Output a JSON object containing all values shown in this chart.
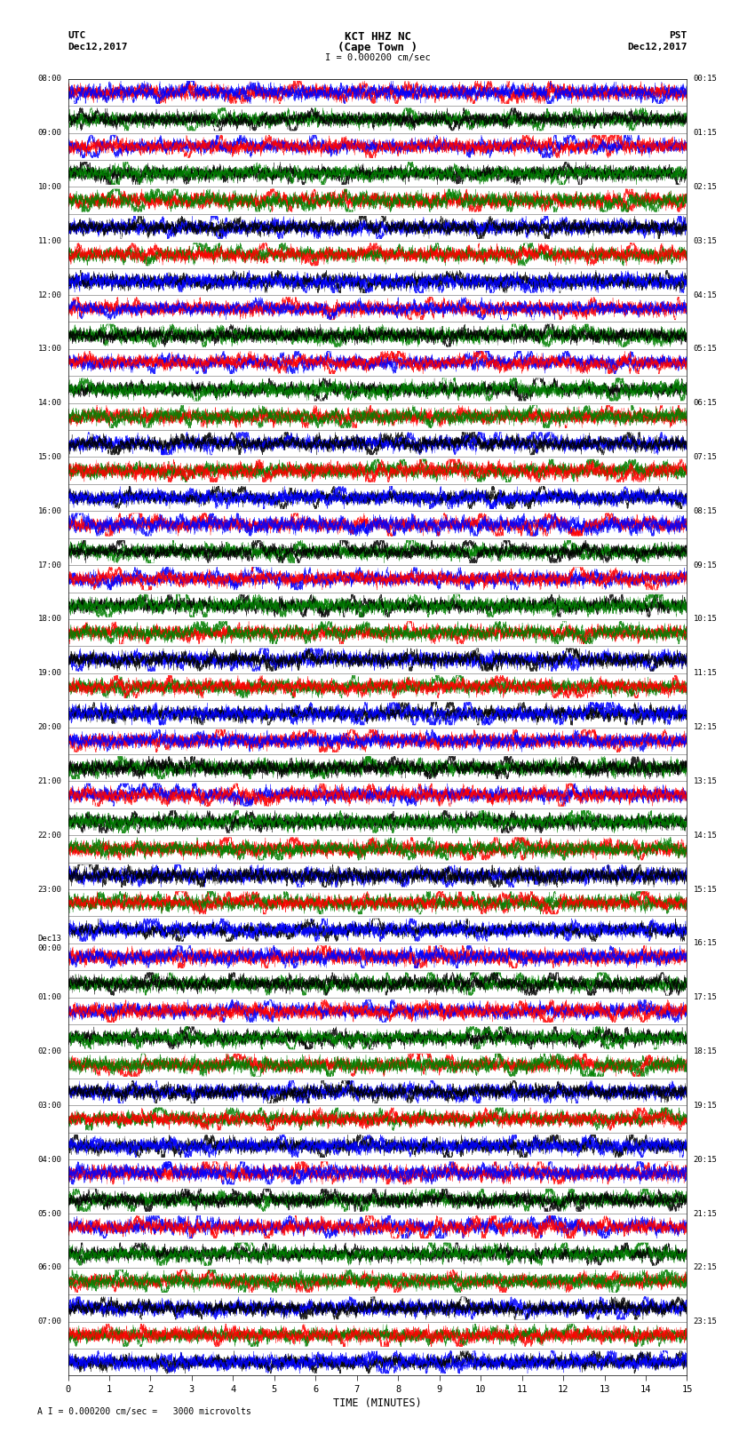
{
  "title_line1": "KCT HHZ NC",
  "title_line2": "(Cape Town )",
  "title_scale": "I = 0.000200 cm/sec",
  "utc_label": "UTC",
  "utc_date": "Dec12,2017",
  "pst_label": "PST",
  "pst_date": "Dec12,2017",
  "xlabel": "TIME (MINUTES)",
  "footer": "A I = 0.000200 cm/sec =   3000 microvolts",
  "num_rows": 48,
  "minutes_per_row": 15,
  "colors_cycle": [
    "red",
    "blue",
    "green",
    "black"
  ],
  "bg_color": "white",
  "trace_amplitude": 0.42,
  "fig_width": 8.5,
  "fig_height": 16.13,
  "dpi": 100,
  "left_label_utc_times": [
    "08:00",
    "09:00",
    "10:00",
    "11:00",
    "12:00",
    "13:00",
    "14:00",
    "15:00",
    "16:00",
    "17:00",
    "18:00",
    "19:00",
    "20:00",
    "21:00",
    "22:00",
    "23:00",
    "Dec13\n00:00",
    "01:00",
    "02:00",
    "03:00",
    "04:00",
    "05:00",
    "06:00",
    "07:00"
  ],
  "right_label_pst_times": [
    "00:15",
    "01:15",
    "02:15",
    "03:15",
    "04:15",
    "05:15",
    "06:15",
    "07:15",
    "08:15",
    "09:15",
    "10:15",
    "11:15",
    "12:15",
    "13:15",
    "14:15",
    "15:15",
    "16:15",
    "17:15",
    "18:15",
    "19:15",
    "20:15",
    "21:15",
    "22:15",
    "23:15"
  ],
  "xticks": [
    0,
    1,
    2,
    3,
    4,
    5,
    6,
    7,
    8,
    9,
    10,
    11,
    12,
    13,
    14,
    15
  ],
  "row_colors": [
    [
      "red",
      "blue"
    ],
    [
      "green",
      "black"
    ],
    [
      "blue",
      "red"
    ],
    [
      "black",
      "green"
    ],
    [
      "red",
      "green"
    ],
    [
      "blue",
      "black"
    ],
    [
      "green",
      "red"
    ],
    [
      "black",
      "blue"
    ],
    [
      "red",
      "blue"
    ],
    [
      "green",
      "black"
    ],
    [
      "blue",
      "red"
    ],
    [
      "black",
      "green"
    ],
    [
      "red",
      "green"
    ],
    [
      "blue",
      "black"
    ],
    [
      "green",
      "red"
    ],
    [
      "black",
      "blue"
    ],
    [
      "red",
      "blue"
    ],
    [
      "green",
      "black"
    ],
    [
      "blue",
      "red"
    ],
    [
      "black",
      "green"
    ],
    [
      "red",
      "green"
    ],
    [
      "blue",
      "black"
    ],
    [
      "green",
      "red"
    ],
    [
      "black",
      "blue"
    ],
    [
      "red",
      "blue"
    ],
    [
      "green",
      "black"
    ],
    [
      "blue",
      "red"
    ],
    [
      "black",
      "green"
    ],
    [
      "red",
      "green"
    ],
    [
      "blue",
      "black"
    ],
    [
      "green",
      "red"
    ],
    [
      "black",
      "blue"
    ],
    [
      "red",
      "blue"
    ],
    [
      "green",
      "black"
    ],
    [
      "blue",
      "red"
    ],
    [
      "black",
      "green"
    ],
    [
      "red",
      "green"
    ],
    [
      "blue",
      "black"
    ],
    [
      "green",
      "red"
    ],
    [
      "black",
      "blue"
    ],
    [
      "red",
      "blue"
    ],
    [
      "green",
      "black"
    ],
    [
      "blue",
      "red"
    ],
    [
      "black",
      "green"
    ],
    [
      "red",
      "green"
    ],
    [
      "blue",
      "black"
    ],
    [
      "green",
      "red"
    ],
    [
      "black",
      "blue"
    ]
  ]
}
